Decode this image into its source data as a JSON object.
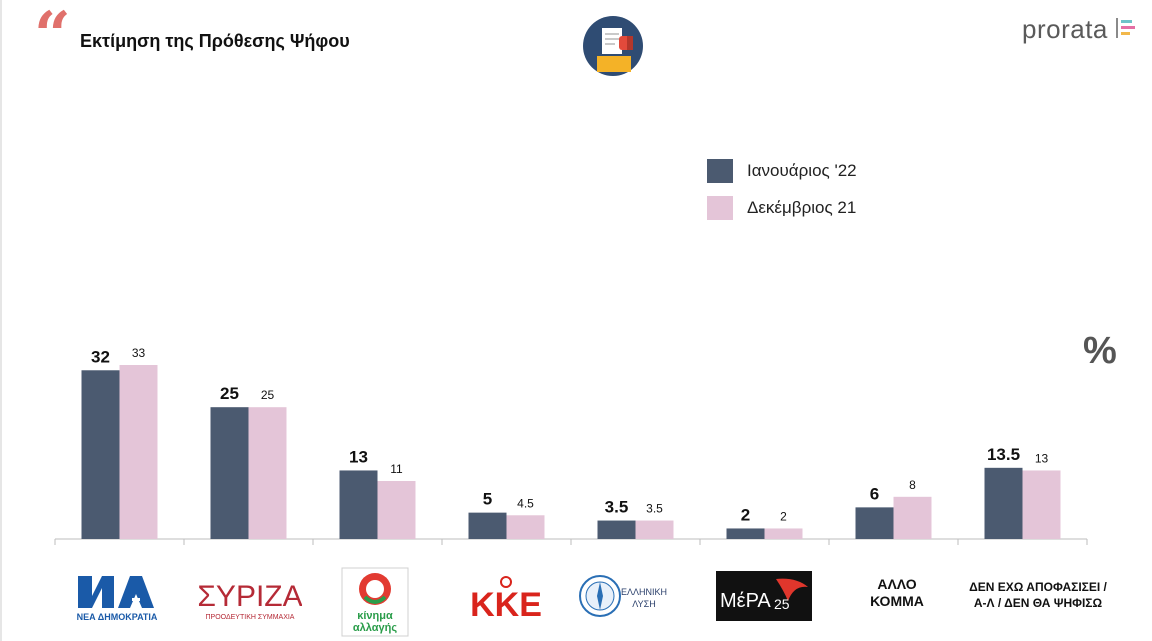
{
  "header": {
    "title": "Εκτίμηση της Πρόθεσης Ψήφου",
    "brand": "prorata",
    "percent_symbol": "%"
  },
  "colors": {
    "accent_quote": "#e0706b",
    "series_jan": "#4b5a70",
    "series_dec": "#e4c5d8",
    "axis": "#bdbdbd"
  },
  "chart_data": {
    "type": "bar",
    "categories": [
      "ΝΕΑ ΔΗΜΟΚΡΑΤΙΑ",
      "ΣΥΡΙΖΑ",
      "κίνημα αλλαγής",
      "ΚΚΕ",
      "ΕΛΛΗΝΙΚΗ ΛΥΣΗ",
      "ΜέΡΑ25",
      "ΑΛΛΟ ΚΟΜΜΑ",
      "ΔΕΝ ΕΧΩ ΑΠΟΦΑΣΙΣΕΙ / Α-Λ / ΔΕΝ ΘΑ ΨΗΦΙΣΩ"
    ],
    "series": [
      {
        "name": "Ιανουάριος '22",
        "values": [
          32,
          25,
          13,
          5,
          3.5,
          2,
          6,
          13.5
        ],
        "labels": [
          "32",
          "25",
          "13",
          "5",
          "3.5",
          "2",
          "6",
          "13.5"
        ]
      },
      {
        "name": "Δεκέμβριος 21",
        "values": [
          33,
          25,
          11,
          4.5,
          3.5,
          2,
          8,
          13
        ],
        "labels": [
          "33",
          "25",
          "11",
          "4.5",
          "3.5",
          "2",
          "8",
          "13"
        ]
      }
    ],
    "ylim": [
      0,
      33
    ],
    "grid": false,
    "legend": "top-right",
    "unit": "%"
  },
  "logos": {
    "nd_sub": "ΝΕΑ ΔΗΜΟΚΡΑΤΙΑ",
    "syriza_main": "ΣΥΡΙΖΑ",
    "syriza_sub": "ΠΡΟΟΔΕΥΤΙΚΗ ΣΥΜΜΑΧΙΑ",
    "kinal_line1": "κίνημα",
    "kinal_line2": "αλλαγής",
    "kke": "ΚΚΕ",
    "el_line1": "ΕΛΛΗΝΙΚΗ",
    "el_line2": "ΛΥΣΗ",
    "mera_main": "ΜέΡΑ",
    "mera_num": "25",
    "other_line1": "ΑΛΛΟ",
    "other_line2": "ΚΟΜΜΑ",
    "undecided_line1": "ΔΕΝ ΕΧΩ ΑΠΟΦΑΣΙΣΕΙ /",
    "undecided_line2": "Α-Λ / ΔΕΝ ΘΑ ΨΗΦΙΣΩ"
  }
}
